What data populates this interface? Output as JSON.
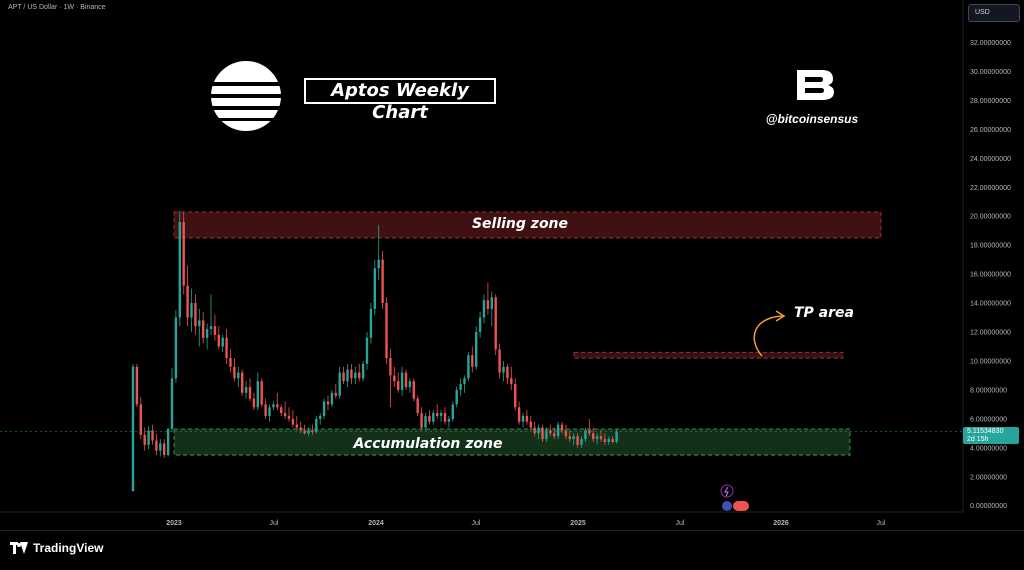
{
  "header": {
    "symbol_info": "APT / US Dollar · 1W · Binance",
    "currency": "USD"
  },
  "overlay": {
    "title": "Aptos Weekly Chart",
    "handle": "@bitcoinsensus",
    "selling_zone": "Selling zone",
    "tp_area": "TP area",
    "accumulation_zone": "Accumulation zone"
  },
  "price_tag": {
    "value": "5.11534830",
    "countdown": "2d 15h"
  },
  "footer": {
    "brand": "TradingView"
  },
  "colors": {
    "up": "#26a69a",
    "down": "#ef5350",
    "sell_zone": "#4a1416",
    "accum_zone": "#163a1d",
    "tp_zone": "#3e1518"
  },
  "chart_data": {
    "type": "candlestick",
    "title": "Aptos Weekly Chart",
    "yaxis_ticks": [
      32,
      30,
      28,
      26,
      24,
      22,
      20,
      18,
      16,
      14,
      12,
      10,
      8,
      6,
      4,
      2,
      0
    ],
    "ylim": [
      0,
      32
    ],
    "xaxis_ticks": [
      "2023",
      "Jul",
      "2024",
      "Jul",
      "2025",
      "Jul",
      "2026",
      "Jul"
    ],
    "zones": [
      {
        "name": "Selling zone",
        "low": 18.5,
        "high": 20.3,
        "start": "2022-12",
        "end": "2026-06"
      },
      {
        "name": "TP area",
        "low": 10.2,
        "high": 10.6,
        "start": "2024-12",
        "end": "2026-06"
      },
      {
        "name": "Accumulation zone",
        "low": 3.5,
        "high": 5.3,
        "start": "2022-12",
        "end": "2026-06"
      }
    ],
    "last_price": 5.1153483,
    "candles": [
      {
        "o": 1.0,
        "h": 9.8,
        "l": 1.0,
        "c": 9.6
      },
      {
        "o": 9.6,
        "h": 9.8,
        "l": 6.8,
        "c": 7.0
      },
      {
        "o": 7.0,
        "h": 7.5,
        "l": 4.6,
        "c": 4.9
      },
      {
        "o": 4.9,
        "h": 5.4,
        "l": 3.8,
        "c": 4.2
      },
      {
        "o": 4.2,
        "h": 5.5,
        "l": 3.9,
        "c": 5.2
      },
      {
        "o": 5.2,
        "h": 5.6,
        "l": 4.2,
        "c": 4.5
      },
      {
        "o": 4.5,
        "h": 5.0,
        "l": 3.5,
        "c": 3.8
      },
      {
        "o": 3.8,
        "h": 4.6,
        "l": 3.4,
        "c": 4.3
      },
      {
        "o": 4.3,
        "h": 4.6,
        "l": 3.3,
        "c": 3.5
      },
      {
        "o": 3.5,
        "h": 5.4,
        "l": 3.4,
        "c": 5.3
      },
      {
        "o": 5.3,
        "h": 9.5,
        "l": 5.1,
        "c": 8.8
      },
      {
        "o": 8.8,
        "h": 13.5,
        "l": 8.5,
        "c": 13.0
      },
      {
        "o": 13.0,
        "h": 20.4,
        "l": 12.4,
        "c": 19.6
      },
      {
        "o": 19.6,
        "h": 20.3,
        "l": 14.6,
        "c": 15.2
      },
      {
        "o": 15.2,
        "h": 16.6,
        "l": 12.4,
        "c": 13.0
      },
      {
        "o": 13.0,
        "h": 15.0,
        "l": 12.0,
        "c": 14.0
      },
      {
        "o": 14.0,
        "h": 14.6,
        "l": 11.8,
        "c": 12.4
      },
      {
        "o": 12.4,
        "h": 13.6,
        "l": 11.0,
        "c": 12.8
      },
      {
        "o": 12.8,
        "h": 13.4,
        "l": 11.2,
        "c": 11.6
      },
      {
        "o": 11.6,
        "h": 12.6,
        "l": 10.8,
        "c": 12.2
      },
      {
        "o": 12.2,
        "h": 14.6,
        "l": 11.8,
        "c": 12.4
      },
      {
        "o": 12.4,
        "h": 13.2,
        "l": 11.4,
        "c": 11.8
      },
      {
        "o": 11.8,
        "h": 12.4,
        "l": 10.8,
        "c": 11.0
      },
      {
        "o": 11.0,
        "h": 11.8,
        "l": 10.6,
        "c": 11.6
      },
      {
        "o": 11.6,
        "h": 12.2,
        "l": 9.8,
        "c": 10.2
      },
      {
        "o": 10.2,
        "h": 10.8,
        "l": 9.2,
        "c": 9.6
      },
      {
        "o": 9.6,
        "h": 10.2,
        "l": 8.6,
        "c": 8.8
      },
      {
        "o": 8.8,
        "h": 9.6,
        "l": 8.2,
        "c": 9.2
      },
      {
        "o": 9.2,
        "h": 9.4,
        "l": 7.6,
        "c": 7.8
      },
      {
        "o": 7.8,
        "h": 8.6,
        "l": 7.4,
        "c": 8.2
      },
      {
        "o": 8.2,
        "h": 8.8,
        "l": 7.2,
        "c": 7.4
      },
      {
        "o": 7.4,
        "h": 7.8,
        "l": 6.6,
        "c": 6.8
      },
      {
        "o": 6.8,
        "h": 9.2,
        "l": 6.6,
        "c": 8.6
      },
      {
        "o": 8.6,
        "h": 8.8,
        "l": 6.8,
        "c": 7.0
      },
      {
        "o": 7.0,
        "h": 7.4,
        "l": 6.0,
        "c": 6.2
      },
      {
        "o": 6.2,
        "h": 7.0,
        "l": 5.8,
        "c": 6.8
      },
      {
        "o": 6.8,
        "h": 7.2,
        "l": 6.6,
        "c": 7.0
      },
      {
        "o": 7.0,
        "h": 7.8,
        "l": 6.6,
        "c": 6.8
      },
      {
        "o": 6.8,
        "h": 7.0,
        "l": 6.2,
        "c": 6.4
      },
      {
        "o": 6.4,
        "h": 7.2,
        "l": 6.0,
        "c": 6.2
      },
      {
        "o": 6.2,
        "h": 6.8,
        "l": 5.8,
        "c": 6.0
      },
      {
        "o": 6.0,
        "h": 6.6,
        "l": 5.4,
        "c": 5.6
      },
      {
        "o": 5.6,
        "h": 6.2,
        "l": 5.2,
        "c": 5.4
      },
      {
        "o": 5.4,
        "h": 5.8,
        "l": 5.0,
        "c": 5.2
      },
      {
        "o": 5.2,
        "h": 5.6,
        "l": 4.9,
        "c": 5.0
      },
      {
        "o": 5.0,
        "h": 5.4,
        "l": 4.8,
        "c": 5.2
      },
      {
        "o": 5.2,
        "h": 5.6,
        "l": 4.9,
        "c": 5.1
      },
      {
        "o": 5.1,
        "h": 6.2,
        "l": 5.0,
        "c": 6.0
      },
      {
        "o": 6.0,
        "h": 6.4,
        "l": 5.6,
        "c": 6.2
      },
      {
        "o": 6.2,
        "h": 7.4,
        "l": 6.0,
        "c": 7.2
      },
      {
        "o": 7.2,
        "h": 7.6,
        "l": 6.6,
        "c": 7.0
      },
      {
        "o": 7.0,
        "h": 8.0,
        "l": 6.8,
        "c": 7.8
      },
      {
        "o": 7.8,
        "h": 8.4,
        "l": 7.4,
        "c": 7.6
      },
      {
        "o": 7.6,
        "h": 9.6,
        "l": 7.4,
        "c": 9.2
      },
      {
        "o": 9.2,
        "h": 9.6,
        "l": 8.4,
        "c": 8.6
      },
      {
        "o": 8.6,
        "h": 9.8,
        "l": 8.2,
        "c": 9.4
      },
      {
        "o": 9.4,
        "h": 9.8,
        "l": 8.4,
        "c": 8.8
      },
      {
        "o": 8.8,
        "h": 9.6,
        "l": 8.4,
        "c": 9.2
      },
      {
        "o": 9.2,
        "h": 9.8,
        "l": 8.6,
        "c": 8.8
      },
      {
        "o": 8.8,
        "h": 10.0,
        "l": 8.6,
        "c": 9.8
      },
      {
        "o": 9.8,
        "h": 12.0,
        "l": 9.4,
        "c": 11.6
      },
      {
        "o": 11.6,
        "h": 14.0,
        "l": 11.2,
        "c": 13.6
      },
      {
        "o": 13.6,
        "h": 17.0,
        "l": 13.2,
        "c": 16.4
      },
      {
        "o": 16.4,
        "h": 19.4,
        "l": 15.6,
        "c": 17.0
      },
      {
        "o": 17.0,
        "h": 17.6,
        "l": 13.6,
        "c": 14.0
      },
      {
        "o": 14.0,
        "h": 14.4,
        "l": 9.8,
        "c": 10.2
      },
      {
        "o": 10.2,
        "h": 10.8,
        "l": 6.8,
        "c": 9.0
      },
      {
        "o": 9.0,
        "h": 9.6,
        "l": 8.2,
        "c": 8.6
      },
      {
        "o": 8.6,
        "h": 9.2,
        "l": 7.8,
        "c": 8.0
      },
      {
        "o": 8.0,
        "h": 9.6,
        "l": 7.6,
        "c": 9.2
      },
      {
        "o": 9.2,
        "h": 9.4,
        "l": 8.0,
        "c": 8.2
      },
      {
        "o": 8.2,
        "h": 8.8,
        "l": 7.8,
        "c": 8.6
      },
      {
        "o": 8.6,
        "h": 8.8,
        "l": 7.2,
        "c": 7.4
      },
      {
        "o": 7.4,
        "h": 7.6,
        "l": 6.2,
        "c": 6.4
      },
      {
        "o": 6.4,
        "h": 6.8,
        "l": 5.2,
        "c": 5.4
      },
      {
        "o": 5.4,
        "h": 6.4,
        "l": 5.2,
        "c": 6.2
      },
      {
        "o": 6.2,
        "h": 6.6,
        "l": 5.6,
        "c": 5.8
      },
      {
        "o": 5.8,
        "h": 6.6,
        "l": 5.6,
        "c": 6.4
      },
      {
        "o": 6.4,
        "h": 7.0,
        "l": 6.0,
        "c": 6.2
      },
      {
        "o": 6.2,
        "h": 6.6,
        "l": 5.8,
        "c": 6.4
      },
      {
        "o": 6.4,
        "h": 6.8,
        "l": 5.6,
        "c": 5.8
      },
      {
        "o": 5.8,
        "h": 6.2,
        "l": 5.4,
        "c": 6.0
      },
      {
        "o": 6.0,
        "h": 7.2,
        "l": 5.8,
        "c": 7.0
      },
      {
        "o": 7.0,
        "h": 8.2,
        "l": 6.8,
        "c": 8.0
      },
      {
        "o": 8.0,
        "h": 8.8,
        "l": 7.6,
        "c": 8.4
      },
      {
        "o": 8.4,
        "h": 9.0,
        "l": 7.8,
        "c": 8.8
      },
      {
        "o": 8.8,
        "h": 10.6,
        "l": 8.6,
        "c": 10.4
      },
      {
        "o": 10.4,
        "h": 11.0,
        "l": 9.2,
        "c": 9.6
      },
      {
        "o": 9.6,
        "h": 12.4,
        "l": 9.4,
        "c": 12.0
      },
      {
        "o": 12.0,
        "h": 13.4,
        "l": 11.6,
        "c": 13.0
      },
      {
        "o": 13.0,
        "h": 14.6,
        "l": 12.6,
        "c": 14.2
      },
      {
        "o": 14.2,
        "h": 15.4,
        "l": 13.2,
        "c": 13.6
      },
      {
        "o": 13.6,
        "h": 14.8,
        "l": 12.4,
        "c": 14.4
      },
      {
        "o": 14.4,
        "h": 14.6,
        "l": 10.4,
        "c": 10.8
      },
      {
        "o": 10.8,
        "h": 11.2,
        "l": 8.8,
        "c": 9.2
      },
      {
        "o": 9.2,
        "h": 10.0,
        "l": 8.6,
        "c": 9.6
      },
      {
        "o": 9.6,
        "h": 9.8,
        "l": 8.4,
        "c": 8.8
      },
      {
        "o": 8.8,
        "h": 9.6,
        "l": 8.0,
        "c": 8.4
      },
      {
        "o": 8.4,
        "h": 8.8,
        "l": 6.6,
        "c": 6.8
      },
      {
        "o": 6.8,
        "h": 7.2,
        "l": 5.6,
        "c": 5.8
      },
      {
        "o": 5.8,
        "h": 6.4,
        "l": 5.4,
        "c": 6.2
      },
      {
        "o": 6.2,
        "h": 6.6,
        "l": 5.6,
        "c": 5.8
      },
      {
        "o": 5.8,
        "h": 6.2,
        "l": 5.2,
        "c": 5.4
      },
      {
        "o": 5.4,
        "h": 5.8,
        "l": 4.8,
        "c": 5.0
      },
      {
        "o": 5.0,
        "h": 5.6,
        "l": 4.6,
        "c": 5.4
      },
      {
        "o": 5.4,
        "h": 5.6,
        "l": 4.4,
        "c": 4.6
      },
      {
        "o": 4.6,
        "h": 5.4,
        "l": 4.4,
        "c": 5.2
      },
      {
        "o": 5.2,
        "h": 5.6,
        "l": 4.8,
        "c": 5.0
      },
      {
        "o": 5.0,
        "h": 5.4,
        "l": 4.6,
        "c": 4.8
      },
      {
        "o": 4.8,
        "h": 5.8,
        "l": 4.6,
        "c": 5.6
      },
      {
        "o": 5.6,
        "h": 5.8,
        "l": 5.0,
        "c": 5.2
      },
      {
        "o": 5.2,
        "h": 5.6,
        "l": 4.6,
        "c": 4.8
      },
      {
        "o": 4.8,
        "h": 5.2,
        "l": 4.4,
        "c": 4.6
      },
      {
        "o": 4.6,
        "h": 5.0,
        "l": 4.2,
        "c": 4.8
      },
      {
        "o": 4.8,
        "h": 5.0,
        "l": 4.0,
        "c": 4.2
      },
      {
        "o": 4.2,
        "h": 4.8,
        "l": 4.0,
        "c": 4.6
      },
      {
        "o": 4.6,
        "h": 5.4,
        "l": 4.4,
        "c": 5.2
      },
      {
        "o": 5.2,
        "h": 6.0,
        "l": 4.8,
        "c": 5.0
      },
      {
        "o": 5.0,
        "h": 5.4,
        "l": 4.4,
        "c": 4.6
      },
      {
        "o": 4.6,
        "h": 5.0,
        "l": 4.2,
        "c": 4.8
      },
      {
        "o": 4.8,
        "h": 5.2,
        "l": 4.4,
        "c": 4.6
      },
      {
        "o": 4.6,
        "h": 5.0,
        "l": 4.2,
        "c": 4.4
      },
      {
        "o": 4.4,
        "h": 4.8,
        "l": 4.2,
        "c": 4.6
      },
      {
        "o": 4.6,
        "h": 4.8,
        "l": 4.3,
        "c": 4.4
      },
      {
        "o": 4.4,
        "h": 5.3,
        "l": 4.3,
        "c": 5.12
      }
    ]
  }
}
